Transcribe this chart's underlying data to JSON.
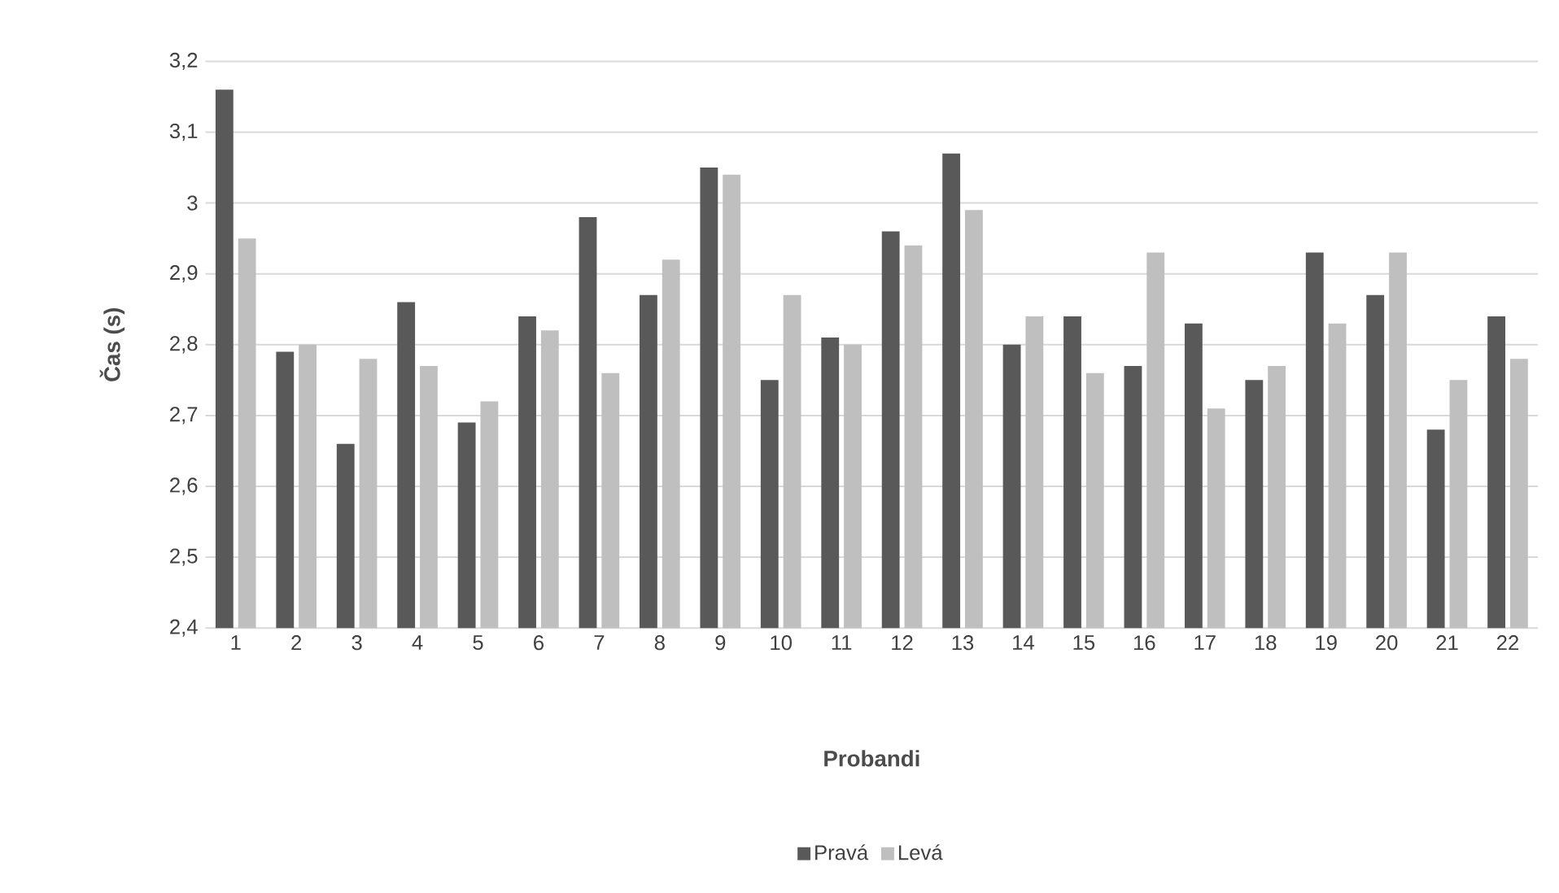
{
  "chart_data": {
    "type": "bar",
    "xlabel": "Probandi",
    "ylabel": "Čas (s)",
    "categories": [
      "1",
      "2",
      "3",
      "4",
      "5",
      "6",
      "7",
      "8",
      "9",
      "10",
      "11",
      "12",
      "13",
      "14",
      "15",
      "16",
      "17",
      "18",
      "19",
      "20",
      "21",
      "22"
    ],
    "series": [
      {
        "name": "Pravá",
        "color": "#595959",
        "values": [
          3.16,
          2.79,
          2.66,
          2.86,
          2.69,
          2.84,
          2.98,
          2.87,
          3.05,
          2.75,
          2.81,
          2.96,
          3.07,
          2.8,
          2.84,
          2.77,
          2.83,
          2.75,
          2.93,
          2.87,
          2.68,
          2.84
        ]
      },
      {
        "name": "Levá",
        "color": "#bfbfbf",
        "values": [
          2.95,
          2.8,
          2.78,
          2.77,
          2.72,
          2.82,
          2.76,
          2.92,
          3.04,
          2.87,
          2.8,
          2.94,
          2.99,
          2.84,
          2.76,
          2.93,
          2.71,
          2.77,
          2.83,
          2.93,
          2.75,
          2.78
        ]
      }
    ],
    "ylim": [
      2.4,
      3.2
    ],
    "yticks": [
      {
        "value": 2.4,
        "label": "2,4"
      },
      {
        "value": 2.5,
        "label": "2,5"
      },
      {
        "value": 2.6,
        "label": "2,6"
      },
      {
        "value": 2.7,
        "label": "2,7"
      },
      {
        "value": 2.8,
        "label": "2,8"
      },
      {
        "value": 2.9,
        "label": "2,9"
      },
      {
        "value": 3,
        "label": "3"
      },
      {
        "value": 3.1,
        "label": "3,1"
      },
      {
        "value": 3.2,
        "label": "3,2"
      }
    ],
    "grid": "y",
    "legend": "bottom"
  }
}
